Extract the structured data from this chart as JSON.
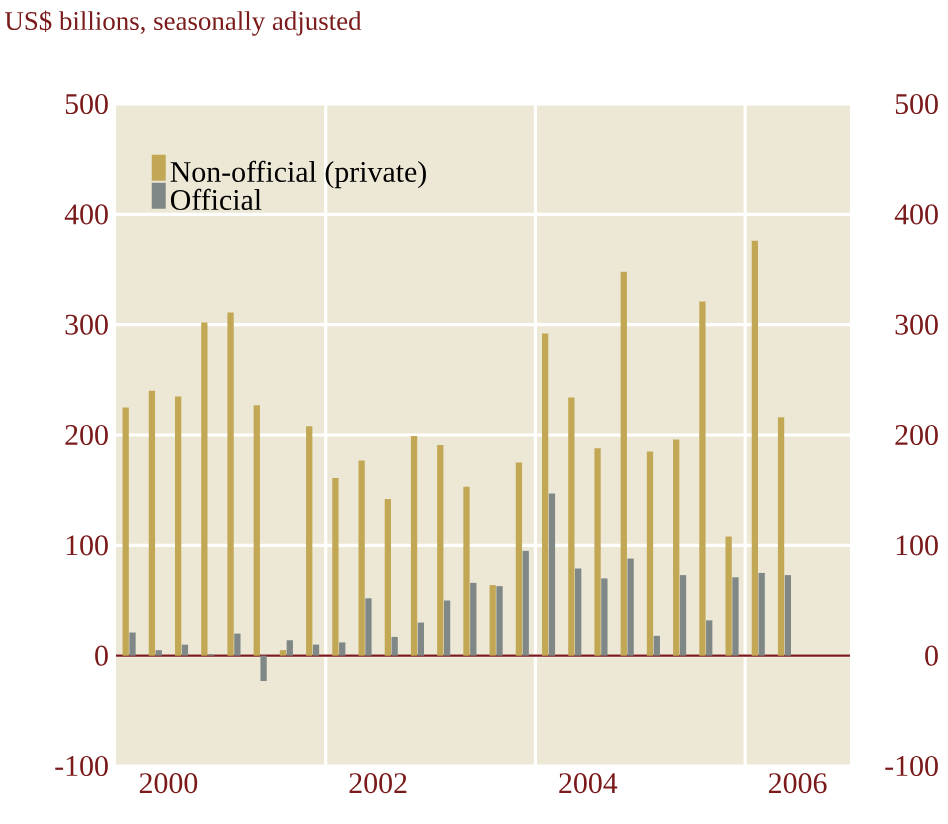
{
  "chart_data": {
    "type": "bar",
    "title": "US$ billions, seasonally adjusted",
    "x": [
      2000.125,
      2000.375,
      2000.625,
      2000.875,
      2001.125,
      2001.375,
      2001.625,
      2001.875,
      2002.125,
      2002.375,
      2002.625,
      2002.875,
      2003.125,
      2003.375,
      2003.625,
      2003.875,
      2004.125,
      2004.375,
      2004.625,
      2004.875,
      2005.125,
      2005.375,
      2005.625,
      2005.875,
      2006.125,
      2006.375
    ],
    "series": [
      {
        "name": "Non-official (private)",
        "color": "#c2a755",
        "values": [
          225,
          240,
          235,
          302,
          311,
          227,
          5,
          208,
          161,
          177,
          142,
          199,
          191,
          153,
          64,
          175,
          292,
          234,
          188,
          348,
          185,
          196,
          321,
          108,
          376,
          216
        ]
      },
      {
        "name": "Official",
        "color": "#7f8886",
        "values": [
          21,
          5,
          10,
          1,
          20,
          -23,
          14,
          10,
          12,
          52,
          17,
          30,
          50,
          66,
          63,
          95,
          147,
          79,
          70,
          88,
          18,
          73,
          32,
          71,
          75,
          73
        ]
      }
    ],
    "xlim": [
      2000,
      2007
    ],
    "xticks": [
      {
        "value": 2000.5,
        "label": "2000"
      },
      {
        "value": 2002,
        "label": null
      },
      {
        "value": 2002.5,
        "label": "2002"
      },
      {
        "value": 2004,
        "label": null
      },
      {
        "value": 2004.5,
        "label": "2004"
      },
      {
        "value": 2006,
        "label": null
      },
      {
        "value": 2006.5,
        "label": "2006"
      }
    ],
    "ylim": [
      -100,
      500
    ],
    "yticks": [
      -100,
      0,
      100,
      200,
      300,
      400,
      500
    ],
    "y2lim": [
      -100,
      500
    ],
    "y2ticks": [
      -100,
      0,
      100,
      200,
      300,
      400,
      500
    ],
    "ref_lines": [
      {
        "axis": "y",
        "value": 0,
        "label": null,
        "color": "#7a1a1a"
      }
    ],
    "grid": true,
    "legend": "top left"
  }
}
